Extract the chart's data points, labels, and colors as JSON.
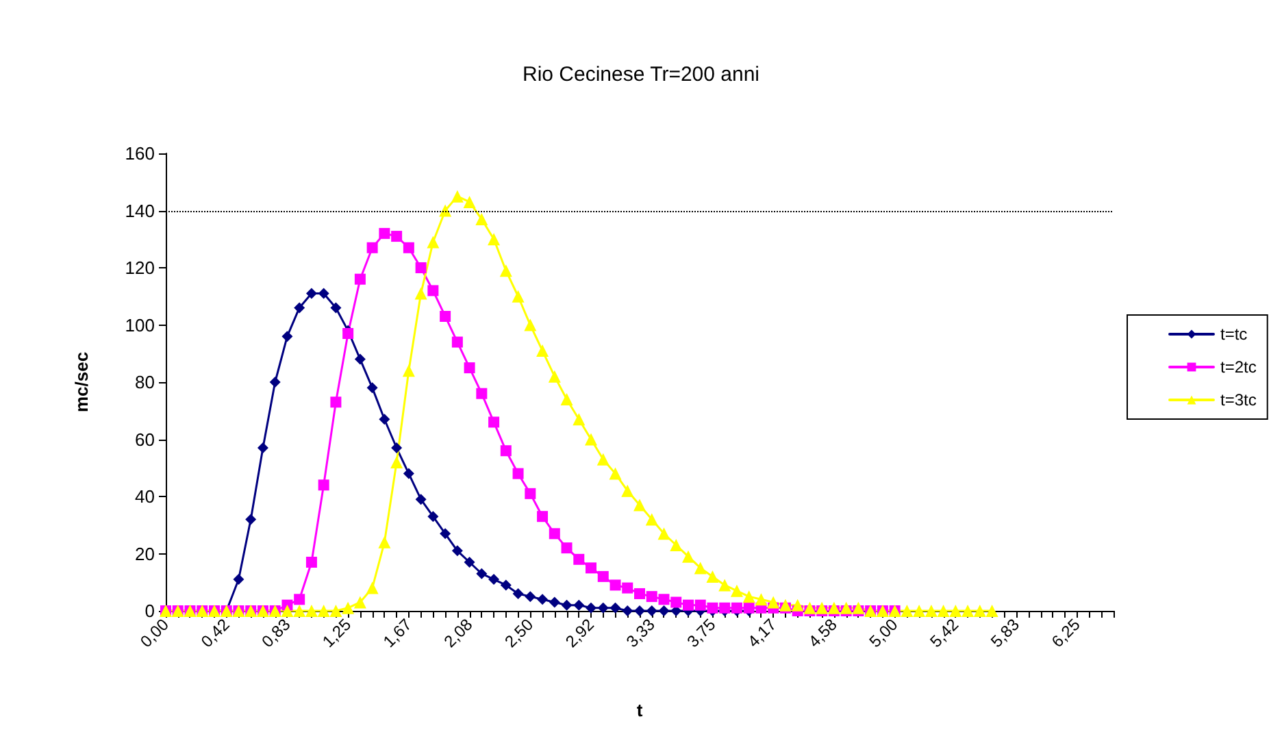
{
  "chart_data": {
    "type": "line",
    "title": "Rio Cecinese Tr=200 anni",
    "xlabel": "t",
    "ylabel": "mc/sec",
    "categories": [
      "0,00",
      null,
      null,
      null,
      null,
      "0,42",
      null,
      null,
      null,
      null,
      "0,83",
      null,
      null,
      null,
      null,
      "1,25",
      null,
      null,
      null,
      null,
      "1,67",
      null,
      null,
      null,
      null,
      "2,08",
      null,
      null,
      null,
      null,
      "2,50",
      null,
      null,
      null,
      null,
      "2,92",
      null,
      null,
      null,
      null,
      "3,33",
      null,
      null,
      null,
      null,
      "3,75",
      null,
      null,
      null,
      null,
      "4,17",
      null,
      null,
      null,
      null,
      "4,58",
      null,
      null,
      null,
      null,
      "5,00",
      null,
      null,
      null,
      null,
      "5,42",
      null,
      null,
      null,
      null,
      "5,83",
      null,
      null,
      null,
      null,
      "6,25",
      null,
      null,
      null
    ],
    "series": [
      {
        "name": "t=tc",
        "color": "#000080",
        "marker": "diamond",
        "values": [
          null,
          null,
          null,
          null,
          0,
          0,
          11,
          32,
          57,
          80,
          96,
          106,
          111,
          111,
          106,
          98,
          88,
          78,
          67,
          57,
          48,
          39,
          33,
          27,
          21,
          17,
          13,
          11,
          9,
          6,
          5,
          4,
          3,
          2,
          2,
          1,
          1,
          1,
          0,
          0,
          0,
          0,
          0,
          0,
          0,
          0,
          0,
          0,
          0,
          null,
          null,
          null,
          null,
          null,
          null,
          null,
          null,
          null,
          null,
          null,
          null,
          null,
          null,
          null,
          null,
          null,
          null,
          null,
          null,
          null,
          null,
          null,
          null,
          null,
          null,
          null,
          null,
          null,
          null
        ]
      },
      {
        "name": "t=2tc",
        "color": "#ff00ff",
        "marker": "square",
        "values": [
          0,
          0,
          0,
          0,
          0,
          0,
          0,
          0,
          0,
          0,
          2,
          4,
          17,
          44,
          73,
          97,
          116,
          127,
          132,
          131,
          127,
          120,
          112,
          103,
          94,
          85,
          76,
          66,
          56,
          48,
          41,
          33,
          27,
          22,
          18,
          15,
          12,
          9,
          8,
          6,
          5,
          4,
          3,
          2,
          2,
          1,
          1,
          1,
          1,
          1,
          1,
          1,
          0,
          0,
          0,
          0,
          0,
          0,
          0,
          0,
          0,
          null,
          null,
          null,
          null,
          null,
          null,
          null,
          null,
          null,
          null,
          null,
          null,
          null,
          null,
          null,
          null,
          null,
          null
        ]
      },
      {
        "name": "t=3tc",
        "color": "#ffff00",
        "marker": "triangle",
        "values": [
          0,
          0,
          0,
          0,
          0,
          0,
          0,
          0,
          0,
          0,
          0,
          0,
          0,
          0,
          0,
          1,
          3,
          8,
          24,
          52,
          84,
          111,
          129,
          140,
          145,
          143,
          137,
          130,
          119,
          110,
          100,
          91,
          82,
          74,
          67,
          60,
          53,
          48,
          42,
          37,
          32,
          27,
          23,
          19,
          15,
          12,
          9,
          7,
          5,
          4,
          3,
          2,
          2,
          1,
          1,
          1,
          1,
          1,
          0,
          0,
          0,
          0,
          0,
          0,
          0,
          0,
          0,
          0,
          0,
          null,
          null,
          null,
          null,
          null,
          null,
          null,
          null,
          null,
          null
        ]
      }
    ],
    "ylim": [
      0,
      160
    ],
    "yticks": [
      0,
      20,
      40,
      60,
      80,
      100,
      120,
      140,
      160
    ],
    "ref_lines": [
      {
        "axis": "y",
        "value": 140,
        "color": "#000000",
        "line_style": "dotted"
      }
    ],
    "legend": "right"
  }
}
